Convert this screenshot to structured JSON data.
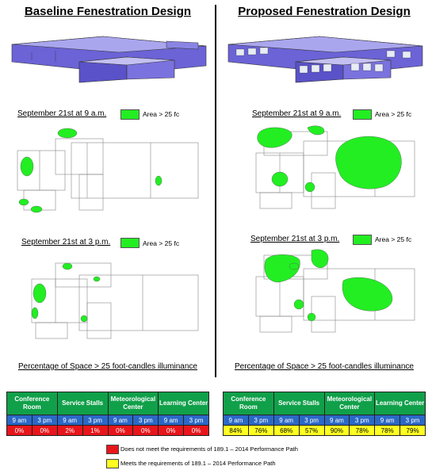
{
  "baseline": {
    "title": "Baseline Fenestration Design",
    "sep9": "September 21st at 9 a.m.",
    "sep3": "September 21st at 3 p.m.",
    "legend": "Area > 25 fc",
    "pct_title": "Percentage of Space > 25 foot-candles illuminance",
    "table": {
      "headers": [
        "Conference Room",
        "Service Stalls",
        "Meteorological Center",
        "Learning Center"
      ],
      "times": [
        "9 am",
        "3 pm",
        "9 am",
        "3 pm",
        "9 am",
        "3 pm",
        "9 am",
        "3 pm"
      ],
      "values": [
        "0%",
        "0%",
        "2%",
        "1%",
        "0%",
        "0%",
        "0%",
        "0%"
      ]
    }
  },
  "proposed": {
    "title": "Proposed Fenestration Design",
    "sep9": "September 21st at 9 a.m.",
    "sep3": "September 21st at 3 p.m.",
    "legend": "Area > 25 fc",
    "pct_title": "Percentage of Space > 25 foot-candles illuminance",
    "table": {
      "headers": [
        "Conference Room",
        "Service Stalls",
        "Meteorological Center",
        "Learning Center"
      ],
      "times": [
        "9 am",
        "3 pm",
        "9 am",
        "3 pm",
        "9 am",
        "3 pm",
        "9 am",
        "3 pm"
      ],
      "values": [
        "84%",
        "76%",
        "68%",
        "57%",
        "90%",
        "78%",
        "78%",
        "79%"
      ]
    }
  },
  "key": {
    "red_label": "Does not meet the requirements of 189.1 – 2014 Performance Path",
    "yellow_label": "Meets the requirements of 189.1 – 2014 Performance Path",
    "red_color": "#e8161b",
    "yellow_color": "#ffff22"
  }
}
